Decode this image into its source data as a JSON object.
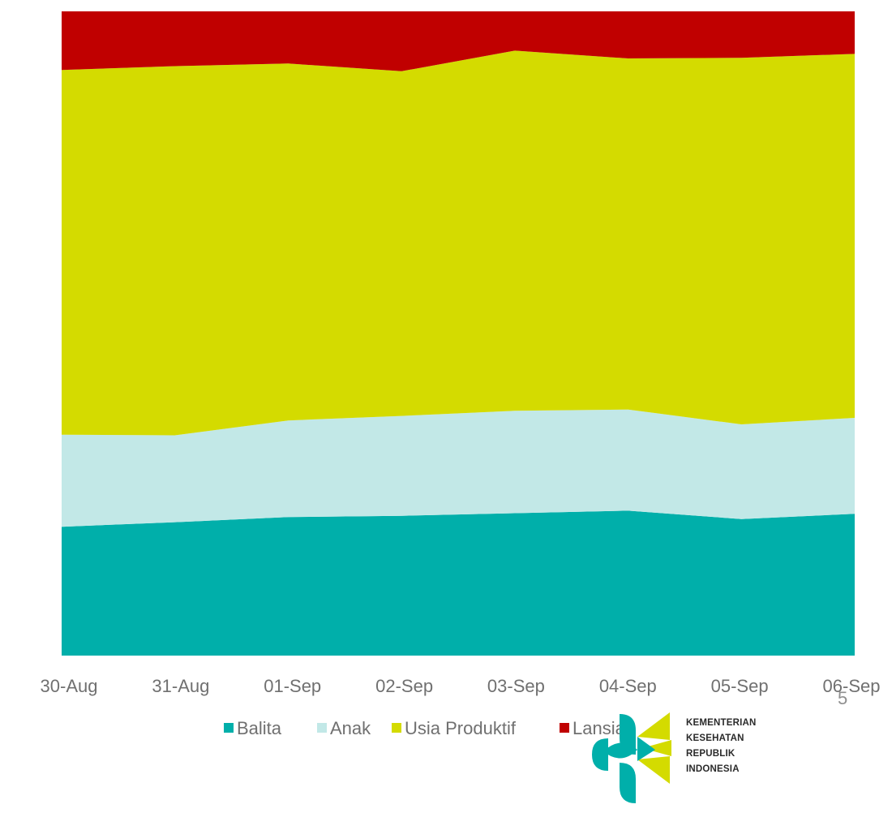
{
  "chart_data": {
    "type": "area",
    "stacked": true,
    "normalized": "percent",
    "categories": [
      "30-Aug",
      "31-Aug",
      "01-Sep",
      "02-Sep",
      "03-Sep",
      "04-Sep",
      "05-Sep",
      "06-Sep"
    ],
    "series": [
      {
        "name": "Balita",
        "color": "#00AFAA",
        "values": [
          20.0,
          20.7,
          21.5,
          21.7,
          22.1,
          22.5,
          21.2,
          22.0
        ]
      },
      {
        "name": "Anak",
        "color": "#C2E8E7",
        "values": [
          14.3,
          13.5,
          15.0,
          15.5,
          15.9,
          15.7,
          14.7,
          14.9
        ]
      },
      {
        "name": "Usia Produktif",
        "color": "#D4DB00",
        "values": [
          56.6,
          57.3,
          55.4,
          53.5,
          55.9,
          54.5,
          56.9,
          56.5
        ]
      },
      {
        "name": "Lansia",
        "color": "#C00000",
        "values": [
          9.1,
          8.5,
          8.1,
          9.3,
          6.1,
          7.3,
          7.2,
          6.6
        ]
      }
    ],
    "ylim": [
      0,
      100
    ],
    "legend_position": "bottom",
    "grid": false
  },
  "page": {
    "number": "5"
  },
  "logo": {
    "line1": "KEMENTERIAN",
    "line2": "KESEHATAN",
    "line3": "REPUBLIK",
    "line4": "INDONESIA"
  }
}
